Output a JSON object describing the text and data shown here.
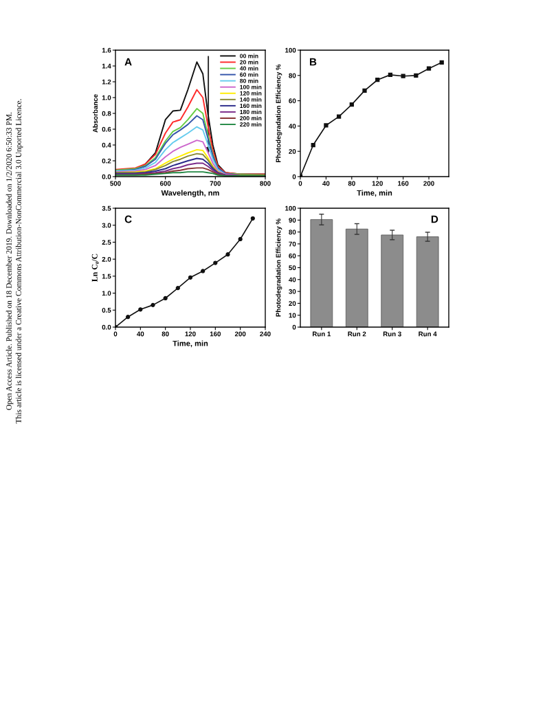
{
  "chart_data": [
    {
      "type": "line",
      "title": "A",
      "xlabel": "Wavelength, nm",
      "ylabel": "Absorbance",
      "xlim": [
        500,
        800
      ],
      "xticks": [
        500,
        600,
        700,
        800
      ],
      "ylim": [
        0,
        1.6
      ],
      "yticks": [
        {
          "value": 0,
          "label": "0.0"
        },
        0.2,
        0.4,
        0.6,
        0.8,
        {
          "value": 1,
          "label": "1.0"
        },
        1.2,
        1.4,
        1.6
      ],
      "legend": "top right",
      "grid": false,
      "marker": "none",
      "line_style": "solid",
      "annotations": [
        "Open Access Article. Published on 18 December 2019. Downloaded on 1/2/2020 6:50:33 PM.",
        "This article is licensed under a Creative Commons Attribution-NonCommercial 3.0 Unported Licence."
      ],
      "x": [
        500,
        540,
        560,
        580,
        600,
        615,
        630,
        645,
        663,
        675,
        685,
        695,
        705,
        720,
        750,
        800
      ],
      "series": [
        {
          "name": "00 min",
          "color": "#111111",
          "values": [
            0.08,
            0.09,
            0.16,
            0.3,
            0.72,
            0.83,
            0.84,
            1.1,
            1.45,
            1.3,
            0.8,
            0.4,
            0.15,
            0.05,
            0.03,
            0.03
          ]
        },
        {
          "name": "20 min",
          "color": "#ff2a2a",
          "values": [
            0.09,
            0.11,
            0.16,
            0.28,
            0.55,
            0.69,
            0.72,
            0.88,
            1.1,
            1.0,
            0.65,
            0.33,
            0.13,
            0.05,
            0.03,
            0.03
          ]
        },
        {
          "name": "40 min",
          "color": "#66cc44",
          "values": [
            0.08,
            0.1,
            0.14,
            0.24,
            0.45,
            0.57,
            0.62,
            0.72,
            0.86,
            0.8,
            0.53,
            0.28,
            0.11,
            0.04,
            0.03,
            0.02
          ]
        },
        {
          "name": "60 min",
          "color": "#3355aa",
          "values": [
            0.07,
            0.09,
            0.13,
            0.22,
            0.42,
            0.53,
            0.59,
            0.66,
            0.77,
            0.72,
            0.49,
            0.26,
            0.11,
            0.04,
            0.02,
            0.02
          ]
        },
        {
          "name": "80 min",
          "color": "#66ccee",
          "values": [
            0.07,
            0.08,
            0.11,
            0.18,
            0.34,
            0.43,
            0.49,
            0.55,
            0.63,
            0.59,
            0.41,
            0.22,
            0.09,
            0.03,
            null,
            null
          ]
        },
        {
          "name": "100 min",
          "color": "#cc66cc",
          "values": [
            0.06,
            0.07,
            0.09,
            0.14,
            0.25,
            0.32,
            0.37,
            0.41,
            0.46,
            0.44,
            0.31,
            0.17,
            0.07,
            0.03,
            0.02,
            null
          ]
        },
        {
          "name": "120 min",
          "color": "#ffee00",
          "values": [
            0.05,
            0.06,
            0.07,
            0.1,
            0.17,
            0.22,
            0.26,
            0.3,
            0.34,
            0.33,
            0.24,
            0.13,
            0.06,
            0.02,
            null,
            null
          ]
        },
        {
          "name": "140 min",
          "color": "#888833",
          "values": [
            0.05,
            0.05,
            0.06,
            0.09,
            0.14,
            0.19,
            0.22,
            0.26,
            0.29,
            0.28,
            0.21,
            0.12,
            0.05,
            0.02,
            0.02,
            0.02
          ]
        },
        {
          "name": "160 min",
          "color": "#2a2a8a",
          "values": [
            0.04,
            0.04,
            0.05,
            0.07,
            0.1,
            0.14,
            0.17,
            0.2,
            0.23,
            0.22,
            0.17,
            0.1,
            0.05,
            0.02,
            0.01,
            0.01
          ]
        },
        {
          "name": "180 min",
          "color": "#7a2a8a",
          "values": [
            0.03,
            0.03,
            0.04,
            0.05,
            0.07,
            0.1,
            0.12,
            0.15,
            0.17,
            0.17,
            0.13,
            0.08,
            0.04,
            0.02,
            0.01,
            0.01
          ]
        },
        {
          "name": "200 min",
          "color": "#883333",
          "values": [
            0.02,
            0.02,
            0.03,
            0.04,
            0.05,
            0.07,
            0.08,
            0.1,
            0.11,
            0.11,
            0.09,
            0.06,
            0.03,
            0.01,
            0.01,
            0.01
          ]
        },
        {
          "name": "220 min",
          "color": "#228844",
          "values": [
            0.02,
            0.02,
            0.02,
            0.03,
            0.04,
            0.05,
            0.05,
            0.06,
            0.06,
            0.06,
            0.05,
            0.04,
            0.02,
            0.01,
            0.01,
            0.01
          ]
        }
      ]
    },
    {
      "type": "line",
      "title": "B",
      "xlabel": "Time, min",
      "ylabel": "Photodegradation Efficiency %",
      "xlim": [
        0,
        231
      ],
      "xticks": [
        0,
        40,
        80,
        120,
        160,
        200
      ],
      "ylim": [
        0,
        100
      ],
      "yticks": [
        0,
        20,
        40,
        60,
        80,
        100
      ],
      "grid": false,
      "marker": "square",
      "line_style": "solid",
      "x": [
        0,
        20,
        40,
        60,
        80,
        100,
        120,
        140,
        160,
        180,
        200,
        220
      ],
      "series": [
        {
          "color": "#111111",
          "values": [
            0,
            25,
            40.5,
            47.5,
            57,
            68,
            76.5,
            80.5,
            79.5,
            80,
            85.5,
            90.3
          ]
        }
      ]
    },
    {
      "type": "line",
      "title": "C",
      "xlabel": "Time, min",
      "ylabel": "Ln C₀/C",
      "xlim": [
        0,
        240
      ],
      "xticks": [
        0,
        40,
        80,
        120,
        160,
        200,
        240
      ],
      "ylim": [
        0,
        3.5
      ],
      "yticks": [
        {
          "value": 0,
          "label": "0.0"
        },
        0.5,
        {
          "value": 1,
          "label": "1.0"
        },
        1.5,
        {
          "value": 2,
          "label": "2.0"
        },
        2.5,
        {
          "value": 3,
          "label": "3.0"
        },
        3.5
      ],
      "grid": false,
      "marker": "circle",
      "line_style": "solid",
      "x": [
        0,
        20,
        40,
        60,
        80,
        100,
        120,
        140,
        160,
        180,
        200,
        220
      ],
      "series": [
        {
          "color": "#111111",
          "values": [
            0,
            0.3,
            0.52,
            0.65,
            0.85,
            1.15,
            1.46,
            1.65,
            1.89,
            2.14,
            2.59,
            3.2
          ]
        }
      ]
    },
    {
      "type": "bar",
      "title": "D",
      "ylabel": "Photodegradation Efficiency %",
      "categories": [
        "Run 1",
        "Run 2",
        "Run 3",
        "Run 4"
      ],
      "ylim": [
        0,
        100
      ],
      "yticks": [
        0,
        10,
        20,
        30,
        40,
        50,
        60,
        70,
        80,
        90,
        100
      ],
      "grid": false,
      "color": "#8c8c8c",
      "values": [
        90.5,
        82.5,
        77.5,
        76
      ],
      "errors": [
        4.5,
        4.5,
        4,
        3.8
      ]
    }
  ]
}
